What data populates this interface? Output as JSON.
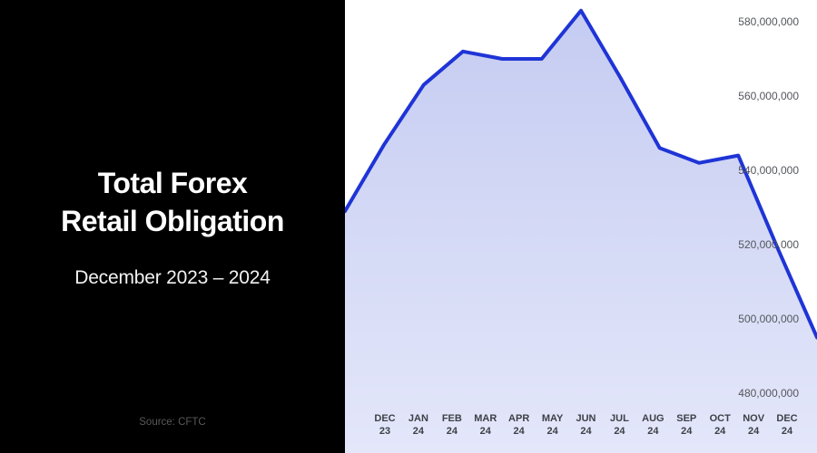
{
  "panel": {
    "title_line1": "Total Forex",
    "title_line2": "Retail Obligation",
    "subtitle": "December 2023 – 2024",
    "source": "Source: CFTC"
  },
  "chart_data": {
    "type": "area",
    "title": "Total Forex Retail Obligation",
    "subtitle": "December 2023 – 2024",
    "source": "CFTC",
    "categories": [
      "DEC 23",
      "JAN 24",
      "FEB 24",
      "MAR 24",
      "APR 24",
      "MAY 24",
      "JUN 24",
      "JUL 24",
      "AUG 24",
      "SEP 24",
      "OCT 24",
      "NOV 24",
      "DEC 24"
    ],
    "values": [
      529000000,
      547000000,
      563000000,
      572000000,
      570000000,
      570000000,
      583000000,
      565000000,
      546000000,
      542000000,
      544000000,
      519000000,
      495000000
    ],
    "y_ticks": [
      580000000,
      560000000,
      540000000,
      520000000,
      500000000,
      480000000
    ],
    "ylim": [
      480000000,
      585000000
    ],
    "xlabel": "",
    "ylabel": "",
    "grid": false,
    "legend": "none",
    "colors": {
      "line": "#1f34d6",
      "fill_top": "#c4cbf1",
      "fill_bottom": "#e4e7fa",
      "panel_bg": "#000000",
      "chart_bg": "#ffffff",
      "axis_text": "#54565c",
      "x_label_text": "#3d4047",
      "source_text": "#595959"
    }
  }
}
